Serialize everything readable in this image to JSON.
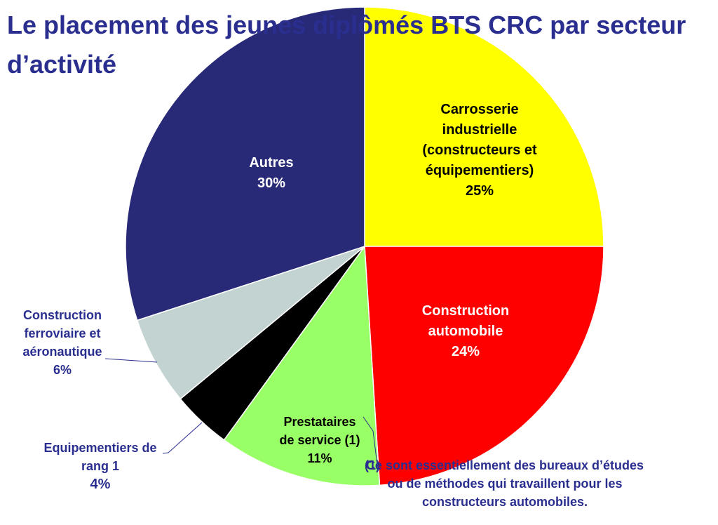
{
  "title": "Le placement des jeunes diplômés BTS CRC par secteur d’activité",
  "chart_data": {
    "type": "pie",
    "start_angle_deg": 0,
    "direction": "clockwise",
    "slices": [
      {
        "key": "carrosserie",
        "lines": [
          "Carrosserie",
          "industrielle",
          "(constructeurs et",
          "équipementiers)"
        ],
        "value": 25,
        "value_label": "25%",
        "color": "#ffff00",
        "label_color": "#000000"
      },
      {
        "key": "construction_auto",
        "lines": [
          "Construction",
          "automobile"
        ],
        "value": 24,
        "value_label": "24%",
        "color": "#ff0000",
        "label_color": "#ffffff"
      },
      {
        "key": "prestataires",
        "lines": [
          "Prestataires",
          "de service (1)"
        ],
        "value": 11,
        "value_label": "11%",
        "color": "#99ff66",
        "label_color": "#000000"
      },
      {
        "key": "equipementiers_rang1",
        "lines": [
          "Equipementiers de",
          "rang 1"
        ],
        "value": 4,
        "value_label": "4%",
        "color": "#000000",
        "label_color": "#2a2e8f"
      },
      {
        "key": "ferroviaire",
        "lines": [
          "Construction",
          "ferroviaire et",
          "aéronautique"
        ],
        "value": 6,
        "value_label": "6%",
        "color": "#c3d3d1",
        "label_color": "#2a2e8f"
      },
      {
        "key": "autres",
        "lines": [
          "Autres"
        ],
        "value": 30,
        "value_label": "30%",
        "color": "#282a78",
        "label_color": "#ffffff"
      }
    ]
  },
  "footnote": {
    "marker": "(1)",
    "text": "Ce sont essentiellement des bureaux d’études ou de méthodes qui travaillent pour les constructeurs automobiles."
  }
}
